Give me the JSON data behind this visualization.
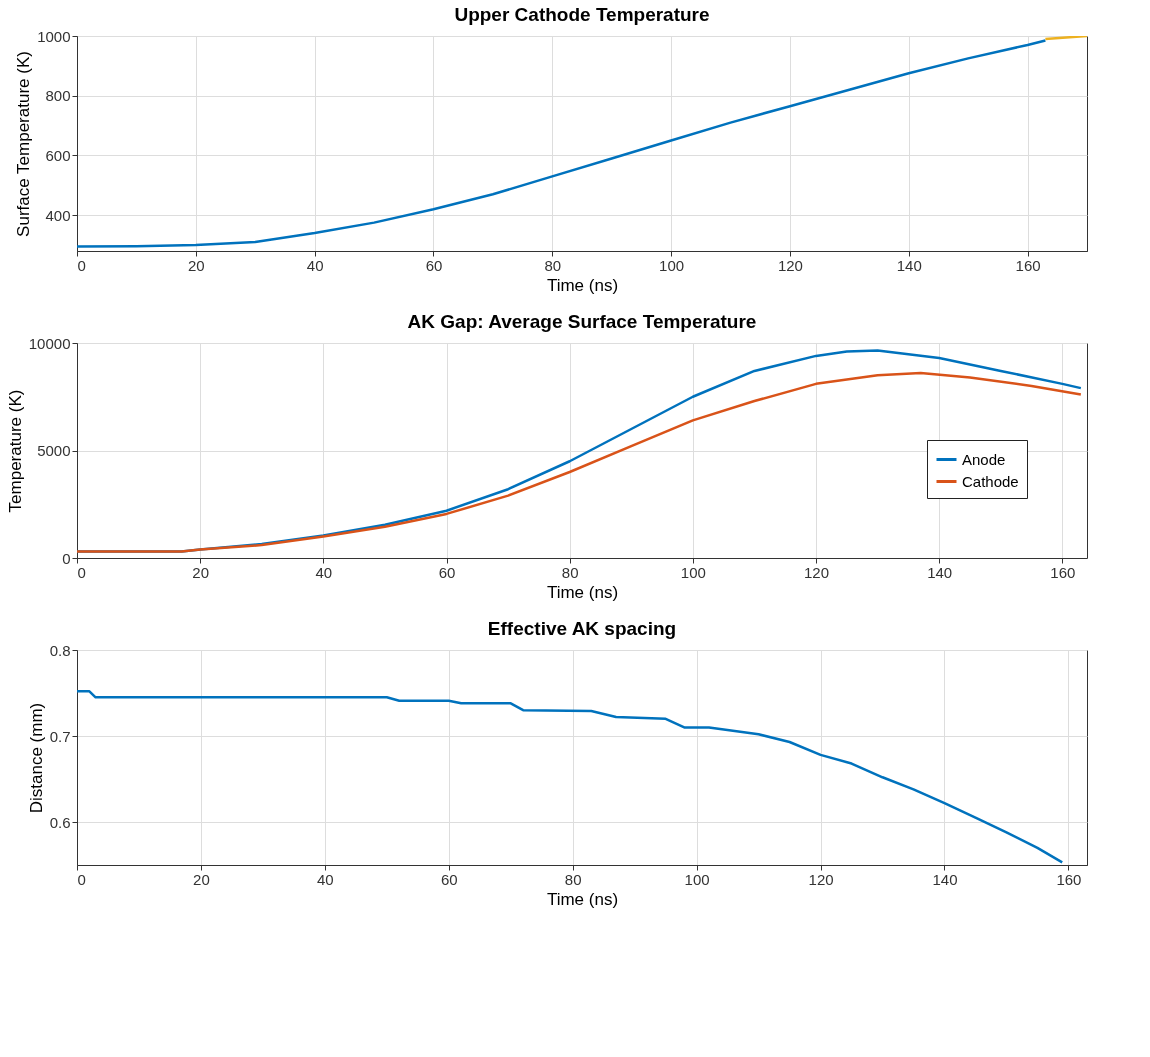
{
  "chart_data": [
    {
      "type": "line",
      "title": "Upper Cathode Temperature",
      "xlabel": "Time (ns)",
      "ylabel": "Surface Temperature (K)",
      "xlim": [
        0,
        170
      ],
      "xticks": [
        0,
        20,
        40,
        60,
        80,
        100,
        120,
        140,
        160
      ],
      "ylim": [
        280,
        1000
      ],
      "yticks": [
        400,
        600,
        800,
        1000
      ],
      "grid": true,
      "legend": false,
      "series": [
        {
          "color": "#0072bd",
          "x": [
            0,
            10,
            20,
            30,
            40,
            50,
            60,
            70,
            80,
            90,
            100,
            110,
            120,
            130,
            140,
            150,
            160,
            163
          ],
          "values": [
            295,
            296,
            300,
            310,
            340,
            375,
            420,
            470,
            530,
            590,
            650,
            710,
            765,
            820,
            875,
            925,
            970,
            985
          ]
        },
        {
          "color": "#edb120",
          "x": [
            163,
            170
          ],
          "values": [
            990,
            1000
          ]
        }
      ]
    },
    {
      "type": "line",
      "title": "AK Gap: Average Surface Temperature",
      "xlabel": "Time (ns)",
      "ylabel": "Temperature (K)",
      "xlim": [
        0,
        164
      ],
      "xticks": [
        0,
        20,
        40,
        60,
        80,
        100,
        120,
        140,
        160
      ],
      "ylim": [
        0,
        10000
      ],
      "yticks": [
        0,
        5000,
        10000
      ],
      "grid": true,
      "legend": "bottom right",
      "series": [
        {
          "name": "Anode",
          "color": "#0072bd",
          "x": [
            0,
            17,
            20,
            30,
            40,
            50,
            60,
            70,
            80,
            90,
            100,
            110,
            120,
            125,
            130,
            140,
            150,
            160,
            163
          ],
          "values": [
            300,
            300,
            400,
            650,
            1050,
            1550,
            2200,
            3200,
            4500,
            6000,
            7500,
            8700,
            9400,
            9600,
            9650,
            9300,
            8700,
            8100,
            7900
          ]
        },
        {
          "name": "Cathode",
          "color": "#d95319",
          "x": [
            0,
            17,
            20,
            30,
            40,
            50,
            60,
            70,
            80,
            90,
            100,
            110,
            120,
            130,
            137,
            145,
            155,
            163
          ],
          "values": [
            300,
            300,
            400,
            600,
            1000,
            1450,
            2050,
            2900,
            4000,
            5200,
            6400,
            7300,
            8100,
            8500,
            8600,
            8400,
            8000,
            7600
          ]
        }
      ]
    },
    {
      "type": "line",
      "title": "Effective AK spacing",
      "xlabel": "Time (ns)",
      "ylabel": "Distance (mm)",
      "xlim": [
        0,
        163
      ],
      "xticks": [
        0,
        20,
        40,
        60,
        80,
        100,
        120,
        140,
        160
      ],
      "ylim": [
        0.55,
        0.8
      ],
      "yticks": [
        0.6,
        0.7,
        0.8
      ],
      "grid": true,
      "legend": false,
      "series": [
        {
          "color": "#0072bd",
          "x": [
            0,
            2,
            3,
            50,
            52,
            60,
            62,
            70,
            72,
            83,
            87,
            95,
            98,
            102,
            110,
            115,
            120,
            125,
            130,
            135,
            140,
            145,
            150,
            155,
            159
          ],
          "values": [
            0.752,
            0.752,
            0.745,
            0.745,
            0.741,
            0.741,
            0.738,
            0.738,
            0.73,
            0.729,
            0.722,
            0.72,
            0.71,
            0.71,
            0.702,
            0.693,
            0.678,
            0.668,
            0.652,
            0.638,
            0.622,
            0.605,
            0.588,
            0.57,
            0.553
          ]
        }
      ]
    }
  ]
}
